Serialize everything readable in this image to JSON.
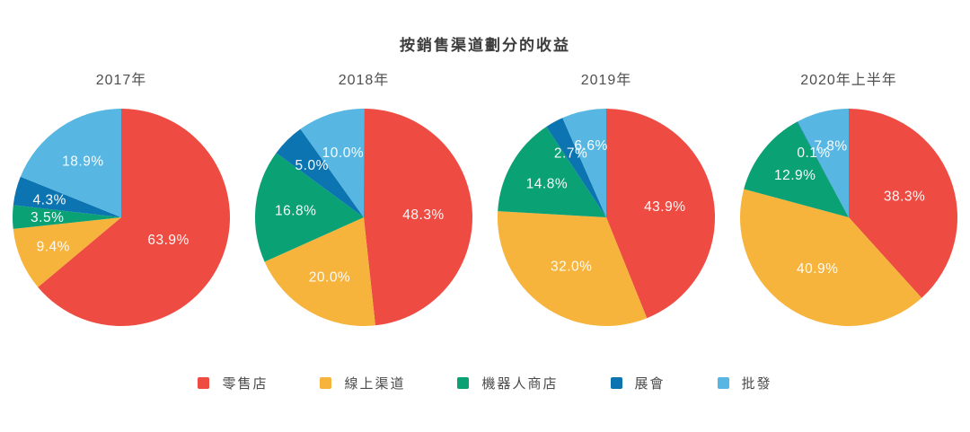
{
  "page": {
    "title": "按銷售渠道劃分的收益"
  },
  "legend": {
    "items": [
      {
        "label": "零售店",
        "color": "#EE4B43"
      },
      {
        "label": "線上渠道",
        "color": "#F6B43C"
      },
      {
        "label": "機器人商店",
        "color": "#0AA174"
      },
      {
        "label": "展會",
        "color": "#0C75B1"
      },
      {
        "label": "批發",
        "color": "#57B7E2"
      }
    ]
  },
  "chart_data": [
    {
      "type": "pie",
      "title": "2017年",
      "categories": [
        "零售店",
        "線上渠道",
        "機器人商店",
        "展會",
        "批發"
      ],
      "values": [
        63.9,
        9.4,
        3.5,
        4.3,
        18.9
      ],
      "display_labels": [
        "63.9%",
        "9.4%",
        "3.5%",
        "4.3%",
        "18.9%"
      ],
      "colors": [
        "#EE4B43",
        "#F6B43C",
        "#0AA174",
        "#0C75B1",
        "#57B7E2"
      ],
      "start_angle_deg": 0,
      "direction": "clockwise",
      "legend_position": "bottom-shared"
    },
    {
      "type": "pie",
      "title": "2018年",
      "categories": [
        "零售店",
        "線上渠道",
        "機器人商店",
        "展會",
        "批發"
      ],
      "values": [
        48.3,
        20.0,
        16.8,
        5.0,
        10.0
      ],
      "display_labels": [
        "48.3%",
        "20.0%",
        "16.8%",
        "5.0%",
        "10.0%"
      ],
      "colors": [
        "#EE4B43",
        "#F6B43C",
        "#0AA174",
        "#0C75B1",
        "#57B7E2"
      ],
      "start_angle_deg": 0,
      "direction": "clockwise",
      "legend_position": "bottom-shared"
    },
    {
      "type": "pie",
      "title": "2019年",
      "categories": [
        "零售店",
        "線上渠道",
        "機器人商店",
        "展會",
        "批發"
      ],
      "values": [
        43.9,
        32.0,
        14.8,
        2.7,
        6.6
      ],
      "display_labels": [
        "43.9%",
        "32.0%",
        "14.8%",
        "2.7%",
        "6.6%"
      ],
      "colors": [
        "#EE4B43",
        "#F6B43C",
        "#0AA174",
        "#0C75B1",
        "#57B7E2"
      ],
      "start_angle_deg": 0,
      "direction": "clockwise",
      "legend_position": "bottom-shared"
    },
    {
      "type": "pie",
      "title": "2020年上半年",
      "categories": [
        "零售店",
        "線上渠道",
        "機器人商店",
        "展會",
        "批發"
      ],
      "values": [
        38.3,
        40.9,
        12.9,
        0.1,
        7.8
      ],
      "display_labels": [
        "38.3%",
        "40.9%",
        "12.9%",
        "0.1%",
        "7.8%"
      ],
      "colors": [
        "#EE4B43",
        "#F6B43C",
        "#0AA174",
        "#0C75B1",
        "#57B7E2"
      ],
      "start_angle_deg": 0,
      "direction": "clockwise",
      "legend_position": "bottom-shared"
    }
  ]
}
